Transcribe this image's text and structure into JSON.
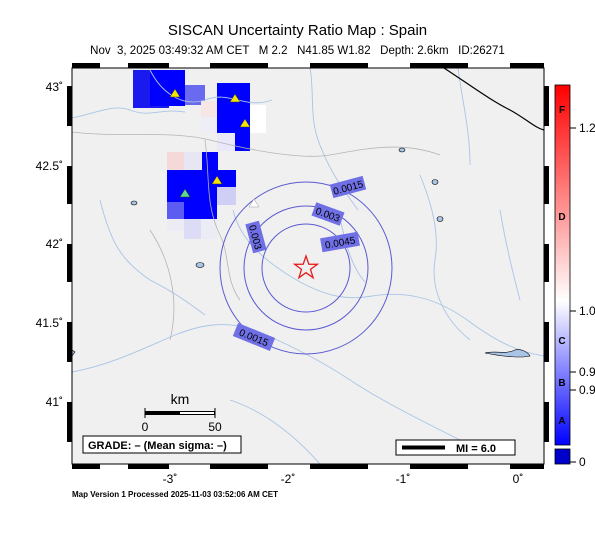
{
  "header": {
    "title": "SISCAN Uncertainty Ratio Map : Spain",
    "subtitle": "Nov  3, 2025 03:49:32 AM CET   M 2.2   N41.85 W1.82   Depth: 2.6km   ID:26271"
  },
  "map": {
    "lat_ticks": [
      "43˚",
      "42.5˚",
      "42˚",
      "41.5˚",
      "41˚"
    ],
    "lon_ticks": [
      "-3˚",
      "-2˚",
      "-1˚",
      "0˚"
    ],
    "epicenter": {
      "lat": 41.85,
      "lon": -1.82
    },
    "contour_labels": [
      "0.0015",
      "0.003",
      "0.0045",
      "0.003",
      "0.0015"
    ],
    "scale_bar": {
      "title": "km",
      "start": "0",
      "end": "50"
    },
    "grade_text": "GRADE: – (Mean sigma: –)",
    "mi_legend": "MI = 6.0"
  },
  "colorbar": {
    "letters": [
      "F",
      "D",
      "C",
      "B",
      "A"
    ],
    "tick_labels": [
      "1.2",
      "1.0",
      "0.9",
      "0.9",
      "0"
    ],
    "colors": {
      "top": "#ff0000",
      "mid": "#ffffff",
      "bottom": "#0000ff",
      "floor": "#0000cc"
    }
  },
  "footer": "Map Version 1 Processed 2025-11-03 03:52:06 AM CET",
  "colors": {
    "land": "#f0f0f0",
    "river": "#a9c4e6",
    "border": "#b4b4b4",
    "contour": "#5a5ad2",
    "contour_label_bg": "#7070e6",
    "station_yellow": "#f2e600",
    "station_green": "#59d98a",
    "star": "#e41b1b"
  }
}
